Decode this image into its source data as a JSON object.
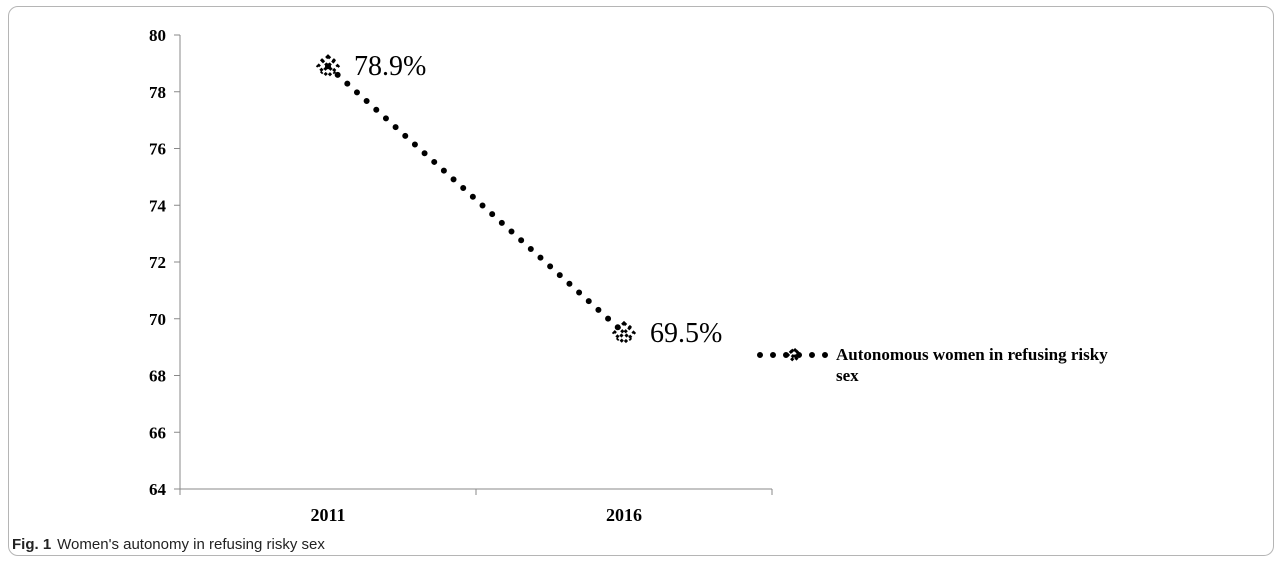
{
  "figure": {
    "label": "Fig. 1",
    "caption": "Women's autonomy in refusing risky sex"
  },
  "chart_data": {
    "type": "line",
    "categories": [
      "2011",
      "2016"
    ],
    "series": [
      {
        "name": "Autonomous women in refusing risky sex",
        "values": [
          78.9,
          69.5
        ],
        "labels": [
          "78.9%",
          "69.5%"
        ],
        "color": "#000000",
        "line_style": "dotted",
        "marker": "diamond-x"
      }
    ],
    "ylim": [
      64,
      80
    ],
    "yticks": [
      64,
      66,
      68,
      70,
      72,
      74,
      76,
      78,
      80
    ],
    "legend_position": "right",
    "grid": false
  }
}
